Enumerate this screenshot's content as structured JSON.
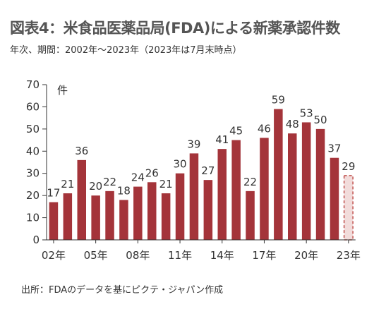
{
  "title": "図表4：米食品医薬品局(FDA)による新薬承認件数",
  "subtitle": "年次、期間：2002年～2023年（2023年は7月末時点）",
  "source": "出所：FDAのデータを基にピクテ・ジャパン作成",
  "colors": {
    "bar": "#A4343A",
    "bar_partial_stroke": "#C0504D",
    "bar_partial_fill": "#F2DCDB"
  },
  "chart_data": {
    "type": "bar",
    "categories": [
      "2002",
      "2003",
      "2004",
      "2005",
      "2006",
      "2007",
      "2008",
      "2009",
      "2010",
      "2011",
      "2012",
      "2013",
      "2014",
      "2015",
      "2016",
      "2017",
      "2018",
      "2019",
      "2020",
      "2021",
      "2022",
      "2023"
    ],
    "values": [
      17,
      21,
      36,
      20,
      22,
      18,
      24,
      26,
      21,
      30,
      39,
      27,
      41,
      45,
      22,
      46,
      59,
      48,
      53,
      50,
      37,
      29
    ],
    "partial_last": true,
    "ylabel": "件",
    "ylim": [
      0,
      70
    ],
    "yticks": [
      "0",
      "10",
      "20",
      "30",
      "40",
      "50",
      "60",
      "70"
    ],
    "xtick_labels": [
      {
        "index": 0,
        "text": "02年"
      },
      {
        "index": 3,
        "text": "05年"
      },
      {
        "index": 6,
        "text": "08年"
      },
      {
        "index": 9,
        "text": "11年"
      },
      {
        "index": 12,
        "text": "14年"
      },
      {
        "index": 15,
        "text": "17年"
      },
      {
        "index": 18,
        "text": "20年"
      },
      {
        "index": 21,
        "text": "23年"
      }
    ],
    "grid": false,
    "legend": "none"
  }
}
